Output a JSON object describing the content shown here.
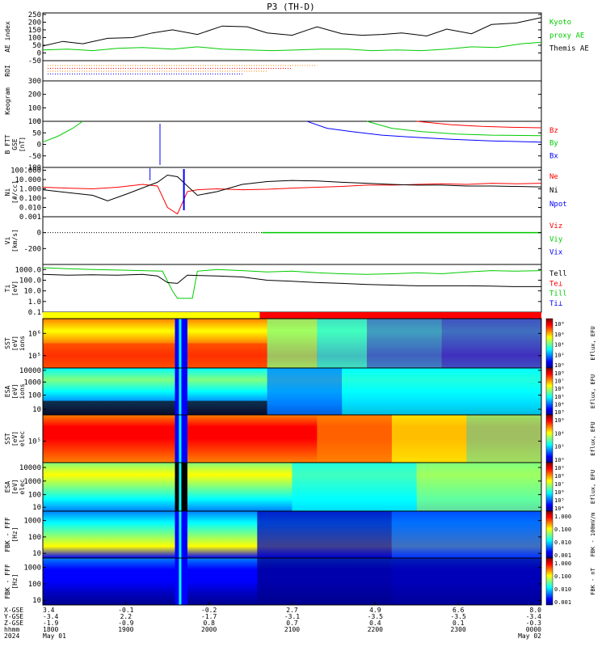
{
  "chart_data": {
    "type": "line",
    "title": "P3 (TH-D)",
    "panels": [
      {
        "id": "ae",
        "ylabel": [
          "AE index"
        ],
        "ticks": [
          "250",
          "200",
          "150",
          "100",
          "50",
          "0",
          "-50"
        ],
        "legend": [
          {
            "text": "Kyoto",
            "color": "#00cc00"
          },
          {
            "text": "proxy AE",
            "color": "#00cc00"
          },
          {
            "text": "Themis AE",
            "color": "#000000"
          }
        ],
        "series": [
          {
            "color": "#000000",
            "x": [
              0,
              4,
              8,
              13,
              18,
              22,
              26,
              31,
              36,
              41,
              45,
              50,
              55,
              60,
              64,
              68,
              72,
              77,
              81,
              86,
              90,
              95,
              100
            ],
            "y": [
              45,
              75,
              60,
              95,
              100,
              130,
              150,
              120,
              175,
              170,
              130,
              115,
              170,
              125,
              115,
              120,
              130,
              110,
              155,
              125,
              185,
              195,
              230
            ]
          },
          {
            "color": "#00cc00",
            "x": [
              0,
              5,
              10,
              15,
              20,
              26,
              31,
              36,
              41,
              46,
              51,
              56,
              61,
              66,
              71,
              76,
              81,
              86,
              91,
              96,
              100
            ],
            "y": [
              20,
              25,
              15,
              30,
              35,
              25,
              40,
              25,
              20,
              15,
              20,
              25,
              25,
              15,
              20,
              15,
              25,
              40,
              35,
              60,
              70
            ]
          }
        ]
      },
      {
        "id": "roi",
        "ylabel": [
          "ROI"
        ],
        "ticks": []
      },
      {
        "id": "keogram",
        "ylabel": [
          "Keogram"
        ],
        "ticks": [
          "300",
          "200",
          "100",
          "0"
        ]
      },
      {
        "id": "bfield",
        "ylabel": [
          "B FTT",
          "GSE",
          "[nT]"
        ],
        "ticks": [
          "100",
          "50",
          "0",
          "-50",
          "-100"
        ],
        "legend": [
          {
            "text": "Bz",
            "color": "#ff0000"
          },
          {
            "text": "By",
            "color": "#00cc00"
          },
          {
            "text": "Bx",
            "color": "#0000ff"
          }
        ],
        "series": [
          {
            "color": "#00cc00",
            "x": [
              0,
              3,
              6,
              8
            ],
            "y": [
              10,
              35,
              70,
              100
            ]
          },
          {
            "color": "#0000ff",
            "x": [
              53,
              57,
              62,
              68,
              75,
              82,
              90,
              100
            ],
            "y": [
              100,
              70,
              55,
              40,
              30,
              22,
              15,
              10
            ]
          },
          {
            "color": "#00cc00",
            "x": [
              65,
              70,
              76,
              83,
              90,
              100
            ],
            "y": [
              100,
              70,
              55,
              45,
              40,
              38
            ]
          },
          {
            "color": "#ff0000",
            "x": [
              75,
              82,
              88,
              94,
              100
            ],
            "y": [
              100,
              85,
              78,
              74,
              72
            ]
          }
        ]
      },
      {
        "id": "density",
        "ylabel": [
          "Ni",
          "[#/cc]"
        ],
        "ticks": [
          "100.000",
          "10.000",
          "1.000",
          "0.100",
          "0.010",
          "0.001"
        ],
        "legend": [
          {
            "text": "Ne",
            "color": "#ff0000"
          },
          {
            "text": "Ni",
            "color": "#000000"
          },
          {
            "text": "Npot",
            "color": "#0000ff"
          }
        ],
        "series": [
          {
            "color": "#ff0000",
            "x": [
              0,
              5,
              10,
              15,
              20,
              23,
              25,
              27,
              29,
              31,
              35,
              40,
              45,
              50,
              55,
              60,
              65,
              70,
              75,
              80,
              85,
              90,
              95,
              100
            ],
            "y": [
              1.5,
              1.2,
              1.0,
              1.5,
              3,
              2,
              0.01,
              0.002,
              0.5,
              0.8,
              1.0,
              0.8,
              0.9,
              1.2,
              1.5,
              1.8,
              2.5,
              2.5,
              3,
              3.5,
              3,
              4,
              3.5,
              4
            ]
          },
          {
            "color": "#000000",
            "x": [
              0,
              5,
              10,
              13,
              17,
              21,
              23,
              25,
              27,
              29,
              31,
              35,
              40,
              45,
              50,
              55,
              60,
              65,
              70,
              75,
              80,
              85,
              90,
              95,
              100
            ],
            "y": [
              0.8,
              0.4,
              0.2,
              0.05,
              0.3,
              2,
              5,
              30,
              20,
              2,
              0.2,
              0.5,
              3,
              6,
              8,
              7,
              5,
              4,
              3,
              2.5,
              2.5,
              2,
              2,
              1.8,
              1.6
            ]
          }
        ]
      },
      {
        "id": "velocity",
        "ylabel": [
          "Vi",
          "[km/s]"
        ],
        "ticks": [
          "0",
          "-200"
        ],
        "legend": [
          {
            "text": "Viz",
            "color": "#ff0000"
          },
          {
            "text": "Viy",
            "color": "#00cc00"
          },
          {
            "text": "Vix",
            "color": "#0000ff"
          }
        ]
      },
      {
        "id": "temperature",
        "ylabel": [
          "Ti",
          "[eV]"
        ],
        "ticks": [
          "1000.0",
          "100.0",
          "10.0",
          "1.0",
          "0.1"
        ],
        "legend": [
          {
            "text": "Tell",
            "color": "#000000"
          },
          {
            "text": "Te⊥",
            "color": "#ff0000"
          },
          {
            "text": "Till",
            "color": "#00cc00"
          },
          {
            "text": "Ti⊥",
            "color": "#0000ff"
          }
        ],
        "series": [
          {
            "color": "#00cc00",
            "x": [
              0,
              5,
              10,
              15,
              20,
              24,
              26,
              27,
              30,
              31,
              35,
              40,
              45,
              50,
              55,
              60,
              65,
              70,
              75,
              80,
              85,
              90,
              95,
              100
            ],
            "y": [
              1500,
              1200,
              1000,
              900,
              800,
              700,
              10,
              2,
              2,
              700,
              1000,
              800,
              600,
              700,
              500,
              400,
              350,
              400,
              500,
              400,
              600,
              800,
              700,
              800
            ]
          },
          {
            "color": "#000000",
            "x": [
              0,
              5,
              10,
              15,
              20,
              23,
              25,
              27,
              29,
              31,
              35,
              40,
              45,
              50,
              55,
              60,
              65,
              70,
              75,
              80,
              85,
              90,
              95,
              100
            ],
            "y": [
              350,
              300,
              320,
              300,
              350,
              250,
              60,
              50,
              300,
              280,
              250,
              200,
              100,
              80,
              60,
              50,
              40,
              35,
              30,
              30,
              30,
              28,
              25,
              25
            ]
          }
        ]
      },
      {
        "id": "bar",
        "ylabel": [],
        "ticks": []
      },
      {
        "id": "sst_i",
        "ylabel": [
          "SST",
          "[eV]",
          "ions"
        ],
        "ticks": [
          "10⁶",
          "10⁵"
        ],
        "colorbar": {
          "label": "Eflux, EFU",
          "ticks": [
            "10⁸",
            "10⁶",
            "10⁴",
            "10²",
            "10⁰"
          ]
        }
      },
      {
        "id": "esa_i",
        "ylabel": [
          "ESA",
          "[eV]",
          "ions"
        ],
        "ticks": [
          "10000",
          "1000",
          "100",
          "10"
        ],
        "colorbar": {
          "label": "Eflux, EFU",
          "ticks": [
            "10⁸",
            "10⁷",
            "10⁶",
            "10⁵",
            "10⁴",
            "10³"
          ]
        }
      },
      {
        "id": "sst_e",
        "ylabel": [
          "SST",
          "[eV]",
          "elec"
        ],
        "ticks": [
          "10⁵"
        ],
        "colorbar": {
          "label": "Eflux, EFU",
          "ticks": [
            "10⁶",
            "10⁴",
            "10²",
            "10⁰"
          ]
        }
      },
      {
        "id": "esa_e",
        "ylabel": [
          "ESA",
          "[eV]",
          "elec"
        ],
        "ticks": [
          "10000",
          "1000",
          "100",
          "10"
        ],
        "colorbar": {
          "label": "Eflux, EFU",
          "ticks": [
            "10⁹",
            "10⁸",
            "10⁷",
            "10⁶",
            "10⁵",
            "10⁴"
          ]
        }
      },
      {
        "id": "fbk1",
        "ylabel": [
          "FBK - FFF",
          "[Hz]"
        ],
        "ticks": [
          "1000",
          "100",
          "10"
        ],
        "colorbar": {
          "label": "FBK - 100mV/m",
          "ticks": [
            "1.000",
            "0.100",
            "0.010",
            "0.001"
          ]
        }
      },
      {
        "id": "fbk2",
        "ylabel": [
          "FBK - FFF",
          "[Hz]"
        ],
        "ticks": [
          "1000",
          "100",
          "10"
        ],
        "colorbar": {
          "label": "FBK - nT",
          "ticks": [
            "1.000",
            "0.100",
            "0.010",
            "0.001"
          ]
        }
      }
    ],
    "x_axis": {
      "row_labels": [
        "X-GSE",
        "Y-GSE",
        "Z-GSE",
        "hhmm",
        "2024"
      ],
      "columns": [
        [
          "3.4",
          "-3.4",
          "-1.9",
          "1800",
          "May 01"
        ],
        [
          "-0.1",
          "2.2",
          "-0.9",
          "1900",
          ""
        ],
        [
          "-0.2",
          "-1.7",
          "0.8",
          "2000",
          ""
        ],
        [
          "2.7",
          "-3.1",
          "0.7",
          "2100",
          ""
        ],
        [
          "4.9",
          "-3.5",
          "0.4",
          "2200",
          ""
        ],
        [
          "6.6",
          "-3.5",
          "0.1",
          "2300",
          ""
        ],
        [
          "8.0",
          "-3.4",
          "-0.3",
          "0000",
          "May 02"
        ]
      ]
    }
  }
}
